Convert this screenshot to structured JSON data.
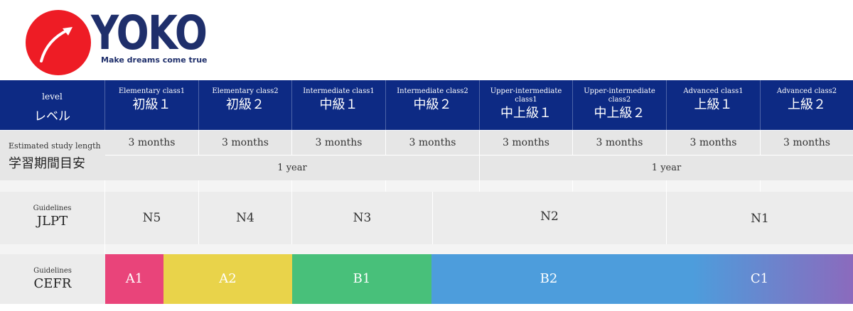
{
  "logo": {
    "brand": "YOKO",
    "tagline": "Make dreams come true",
    "circle_color": "#ee1c25",
    "text_color": "#1f2f6b"
  },
  "header": {
    "level_label_en": "level",
    "level_label_ja": "レベル",
    "classes": [
      {
        "en": "Elementary class1",
        "ja": "初級１"
      },
      {
        "en": "Elementary class2",
        "ja": "初級２"
      },
      {
        "en": "Intermediate class1",
        "ja": "中級１"
      },
      {
        "en": "Intermediate class2",
        "ja": "中級２"
      },
      {
        "en": "Upper-intermediate class1",
        "ja": "中上級１"
      },
      {
        "en": "Upper-intermediate class2",
        "ja": "中上級２"
      },
      {
        "en": "Advanced class1",
        "ja": "上級１"
      },
      {
        "en": "Advanced class2",
        "ja": "上級２"
      }
    ],
    "bg_color": "#0d2a84"
  },
  "study_length": {
    "label_en": "Estimated study length",
    "label_ja": "学習期間目安",
    "months": [
      "3 months",
      "3 months",
      "3 months",
      "3 months",
      "3 months",
      "3 months",
      "3 months",
      "3 months"
    ],
    "years": [
      "1 year",
      "1 year"
    ]
  },
  "jlpt": {
    "label_small": "Guidelines",
    "label_big": "JLPT",
    "levels": [
      "N5",
      "N4",
      "N3",
      "N2",
      "N1"
    ]
  },
  "cefr": {
    "label_small": "Guidelines",
    "label_big": "CEFR",
    "levels": [
      {
        "name": "A1",
        "color": "#e9447a"
      },
      {
        "name": "A2",
        "color": "#e9d34a"
      },
      {
        "name": "B1",
        "color": "#48c07a"
      },
      {
        "name": "B2",
        "color": "#4d9ddc"
      },
      {
        "name": "C1",
        "color": "#8b6abd"
      }
    ]
  }
}
